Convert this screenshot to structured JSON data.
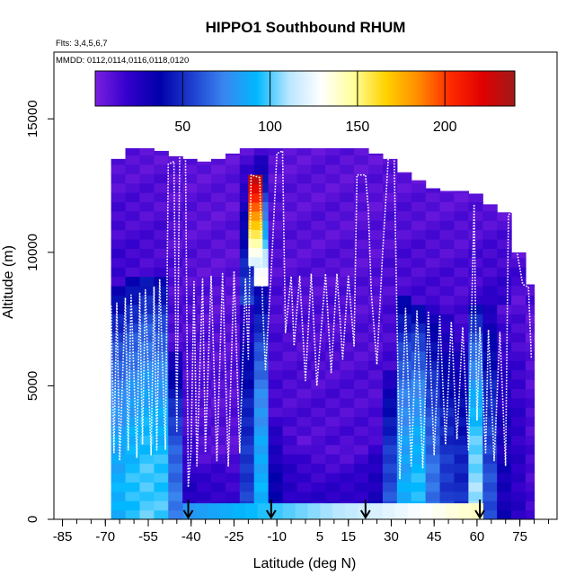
{
  "chart_data": {
    "type": "heatmap",
    "title": "HIPPO1 Southbound RHUM",
    "subtitle_lines": [
      "Flts: 3,4,5,6,7",
      "MMDD: 0112,0114,0116,0118,0120"
    ],
    "xlabel": "Latitude (deg N)",
    "ylabel": "Altitude (m)",
    "xlim": [
      -88,
      88
    ],
    "ylim": [
      0,
      17500
    ],
    "x_ticks": [
      -85,
      -70,
      -55,
      -40,
      -25,
      -10,
      5,
      15,
      30,
      45,
      60,
      75
    ],
    "x_tick_labels": [
      "-85",
      "-70",
      "-55",
      "-40",
      "-25",
      "-10",
      "5",
      "15",
      "30",
      "45",
      "60",
      "75"
    ],
    "x_minor_step": 5,
    "y_ticks": [
      0,
      5000,
      10000,
      15000
    ],
    "y_tick_labels": [
      "0",
      "5000",
      "10000",
      "15000"
    ],
    "colorbar": {
      "range": [
        0,
        240
      ],
      "ticks": [
        50,
        100,
        150,
        200
      ],
      "tick_labels": [
        "50",
        "100",
        "150",
        "200"
      ],
      "colors": [
        "#7a1fe0",
        "#3300cc",
        "#0000aa",
        "#1e3fd0",
        "#3a86f0",
        "#00b8ff",
        "#b8e6ff",
        "#ffffff",
        "#ffff99",
        "#ffd200",
        "#ff8c00",
        "#ff2a00",
        "#e00000",
        "#a01a1a"
      ]
    },
    "flight_markers_lat": [
      -41,
      -12,
      21,
      61
    ],
    "columns": [
      {
        "lat0": -68,
        "lat1": -63,
        "zmax": 13500,
        "moist_top": 8500,
        "val_low": 90,
        "val_high": 18
      },
      {
        "lat0": -63,
        "lat1": -58,
        "zmax": 13900,
        "moist_top": 8800,
        "val_low": 96,
        "val_high": 16
      },
      {
        "lat0": -58,
        "lat1": -53,
        "zmax": 13900,
        "moist_top": 9100,
        "val_low": 100,
        "val_high": 14
      },
      {
        "lat0": -53,
        "lat1": -48,
        "zmax": 13800,
        "moist_top": 8900,
        "val_low": 98,
        "val_high": 14
      },
      {
        "lat0": -48,
        "lat1": -43,
        "zmax": 13600,
        "moist_top": 6000,
        "val_low": 70,
        "val_high": 12
      },
      {
        "lat0": -43,
        "lat1": -38,
        "zmax": 13500,
        "moist_top": 3500,
        "val_low": 25,
        "val_high": 12
      },
      {
        "lat0": -38,
        "lat1": -33,
        "zmax": 13400,
        "moist_top": 2600,
        "val_low": 22,
        "val_high": 10
      },
      {
        "lat0": -33,
        "lat1": -28,
        "zmax": 13500,
        "moist_top": 2600,
        "val_low": 22,
        "val_high": 9
      },
      {
        "lat0": -28,
        "lat1": -23,
        "zmax": 13700,
        "moist_top": 2500,
        "val_low": 20,
        "val_high": 9
      },
      {
        "lat0": -23,
        "lat1": -18,
        "zmax": 13900,
        "moist_top": 7800,
        "val_low": 55,
        "val_high": 60
      },
      {
        "lat0": -18,
        "lat1": -13,
        "zmax": 13900,
        "moist_top": 8500,
        "val_low": 90,
        "val_high": 140
      },
      {
        "lat0": -13,
        "lat1": -8,
        "zmax": 13900,
        "moist_top": 4000,
        "val_low": 35,
        "val_high": 14
      },
      {
        "lat0": -8,
        "lat1": -3,
        "zmax": 13900,
        "moist_top": 3500,
        "val_low": 25,
        "val_high": 12
      },
      {
        "lat0": -3,
        "lat1": 2,
        "zmax": 13900,
        "moist_top": 3000,
        "val_low": 22,
        "val_high": 12
      },
      {
        "lat0": 2,
        "lat1": 7,
        "zmax": 13900,
        "moist_top": 2600,
        "val_low": 22,
        "val_high": 12
      },
      {
        "lat0": 7,
        "lat1": 12,
        "zmax": 13900,
        "moist_top": 2600,
        "val_low": 22,
        "val_high": 12
      },
      {
        "lat0": 12,
        "lat1": 17,
        "zmax": 13900,
        "moist_top": 2600,
        "val_low": 22,
        "val_high": 12
      },
      {
        "lat0": 17,
        "lat1": 22,
        "zmax": 13900,
        "moist_top": 2800,
        "val_low": 24,
        "val_high": 12
      },
      {
        "lat0": 22,
        "lat1": 27,
        "zmax": 13700,
        "moist_top": 3200,
        "val_low": 30,
        "val_high": 12
      },
      {
        "lat0": 27,
        "lat1": 32,
        "zmax": 13500,
        "moist_top": 5500,
        "val_low": 60,
        "val_high": 14
      },
      {
        "lat0": 32,
        "lat1": 37,
        "zmax": 13000,
        "moist_top": 8300,
        "val_low": 88,
        "val_high": 14
      },
      {
        "lat0": 37,
        "lat1": 42,
        "zmax": 12700,
        "moist_top": 8000,
        "val_low": 95,
        "val_high": 14
      },
      {
        "lat0": 42,
        "lat1": 47,
        "zmax": 12400,
        "moist_top": 7800,
        "val_low": 70,
        "val_high": 14
      },
      {
        "lat0": 47,
        "lat1": 52,
        "zmax": 12300,
        "moist_top": 7500,
        "val_low": 55,
        "val_high": 14
      },
      {
        "lat0": 52,
        "lat1": 57,
        "zmax": 12300,
        "moist_top": 7000,
        "val_low": 50,
        "val_high": 14
      },
      {
        "lat0": 57,
        "lat1": 62,
        "zmax": 12200,
        "moist_top": 8000,
        "val_low": 108,
        "val_high": 16
      },
      {
        "lat0": 62,
        "lat1": 67,
        "zmax": 11800,
        "moist_top": 8200,
        "val_low": 60,
        "val_high": 18
      },
      {
        "lat0": 67,
        "lat1": 72,
        "zmax": 11500,
        "moist_top": 8000,
        "val_low": 30,
        "val_high": 20
      },
      {
        "lat0": 72,
        "lat1": 77,
        "zmax": 10000,
        "moist_top": 8500,
        "val_low": 22,
        "val_high": 18
      },
      {
        "lat0": 77,
        "lat1": 80,
        "zmax": 8800,
        "moist_top": 8000,
        "val_low": 14,
        "val_high": 16
      }
    ],
    "surface_band": {
      "lat0": -43,
      "lat1": 62,
      "zmax": 600,
      "val_from": 80,
      "val_to": 140
    },
    "high_core": {
      "lat0": -20,
      "lat1": -15,
      "zmin": 9500,
      "zmax": 12900,
      "val_low": 120,
      "val_high": 230
    },
    "flight_track": [
      [
        -68,
        8000
      ],
      [
        -67,
        2500
      ],
      [
        -66,
        8100
      ],
      [
        -65,
        2200
      ],
      [
        -63,
        8300
      ],
      [
        -62,
        2600
      ],
      [
        -61,
        8400
      ],
      [
        -59,
        2300
      ],
      [
        -58,
        8500
      ],
      [
        -57,
        2800
      ],
      [
        -56,
        8600
      ],
      [
        -54,
        2400
      ],
      [
        -53,
        8700
      ],
      [
        -52,
        2600
      ],
      [
        -51,
        9000
      ],
      [
        -49,
        2600
      ],
      [
        -48,
        13300
      ],
      [
        -46,
        13400
      ],
      [
        -45,
        3300
      ],
      [
        -44,
        13600
      ],
      [
        -42,
        13800
      ],
      [
        -41,
        1200
      ],
      [
        -40,
        2600
      ],
      [
        -39,
        8900
      ],
      [
        -38,
        2000
      ],
      [
        -36,
        9000
      ],
      [
        -35,
        2500
      ],
      [
        -33,
        9100
      ],
      [
        -31,
        2200
      ],
      [
        -29,
        9200
      ],
      [
        -27,
        2000
      ],
      [
        -25,
        9300
      ],
      [
        -23,
        2500
      ],
      [
        -21,
        9000
      ],
      [
        -20,
        6000
      ],
      [
        -19,
        12900
      ],
      [
        -16,
        12800
      ],
      [
        -15,
        8000
      ],
      [
        -14,
        5600
      ],
      [
        -12,
        9200
      ],
      [
        -10,
        13700
      ],
      [
        -8,
        13800
      ],
      [
        -7,
        7000
      ],
      [
        -5,
        9100
      ],
      [
        -4,
        6500
      ],
      [
        -2,
        9100
      ],
      [
        0,
        5200
      ],
      [
        2,
        9200
      ],
      [
        4,
        5000
      ],
      [
        7,
        9200
      ],
      [
        9,
        5500
      ],
      [
        11,
        9200
      ],
      [
        13,
        6000
      ],
      [
        15,
        9100
      ],
      [
        17,
        6500
      ],
      [
        18,
        12900
      ],
      [
        21,
        12900
      ],
      [
        22,
        11600
      ],
      [
        23,
        8500
      ],
      [
        25,
        5800
      ],
      [
        27,
        10000
      ],
      [
        29,
        13600
      ],
      [
        31,
        13700
      ],
      [
        33,
        1500
      ],
      [
        35,
        7900
      ],
      [
        37,
        2000
      ],
      [
        39,
        7800
      ],
      [
        41,
        1900
      ],
      [
        43,
        7800
      ],
      [
        45,
        2400
      ],
      [
        47,
        7600
      ],
      [
        49,
        2800
      ],
      [
        51,
        7400
      ],
      [
        53,
        3000
      ],
      [
        55,
        7200
      ],
      [
        57,
        2600
      ],
      [
        59,
        11800
      ],
      [
        60,
        3700
      ],
      [
        61,
        7200
      ],
      [
        63,
        2500
      ],
      [
        64,
        7100
      ],
      [
        66,
        2200
      ],
      [
        68,
        7000
      ],
      [
        70,
        2000
      ],
      [
        71,
        11400
      ],
      [
        73,
        11600
      ],
      [
        74,
        10000
      ],
      [
        76,
        8800
      ],
      [
        78,
        8700
      ],
      [
        79,
        6000
      ]
    ]
  }
}
